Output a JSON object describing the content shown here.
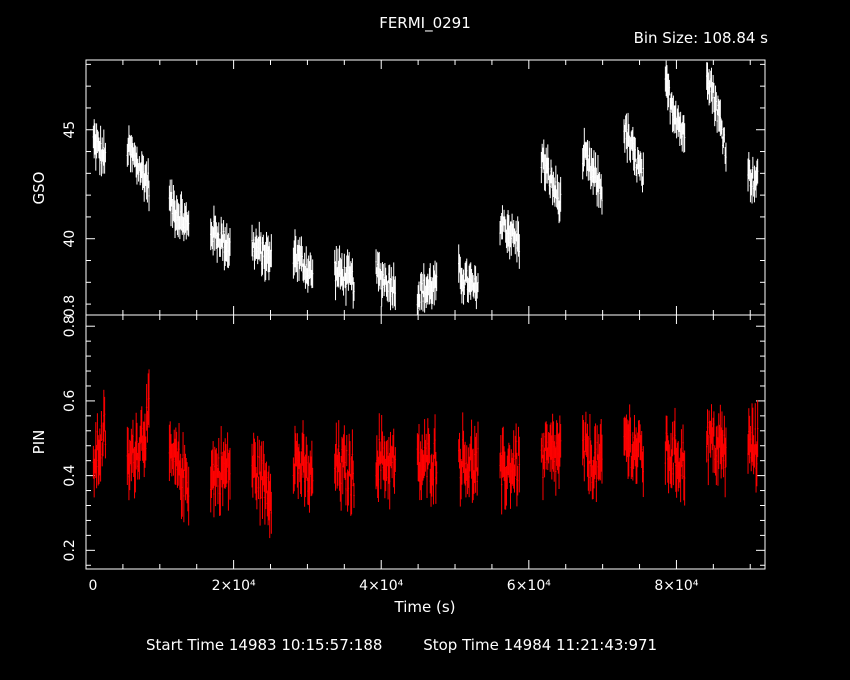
{
  "title": "FERMI_0291",
  "bin_size_text": "Bin Size: 108.84 s",
  "footer": {
    "start_time": "Start Time 14983 10:15:57:188",
    "stop_time": "Stop Time 14984 11:21:43:971"
  },
  "colors": {
    "background": "#000000",
    "axes": "#ffffff",
    "gso_series": "#ffffff",
    "pin_series": "#ff0000"
  },
  "chart_data": [
    {
      "type": "line",
      "panel": "top",
      "ylabel": "GSO",
      "xlabel": "",
      "xlim": [
        0,
        92000
      ],
      "ylim": [
        36.5,
        48.2
      ],
      "yticks_major": [
        40,
        45
      ],
      "ytick_labels": [
        "40",
        "45"
      ],
      "bottom_edge_label": "0.8",
      "series": [
        {
          "color": "#ffffff",
          "segments": [
            {
              "x": [
                1000,
                2800
              ],
              "y": [
                44.5,
                43.6
              ]
            },
            {
              "x": [
                5600,
                8700
              ],
              "y": [
                44.2,
                42.5
              ]
            },
            {
              "x": [
                11300,
                14100
              ],
              "y": [
                41.7,
                40.5
              ]
            },
            {
              "x": [
                16900,
                19700
              ],
              "y": [
                40.4,
                39.6
              ]
            },
            {
              "x": [
                22500,
                25300
              ],
              "y": [
                39.7,
                39.0
              ]
            },
            {
              "x": [
                28100,
                30900
              ],
              "y": [
                39.4,
                38.3
              ]
            },
            {
              "x": [
                33700,
                36500
              ],
              "y": [
                38.6,
                38.0
              ]
            },
            {
              "x": [
                39300,
                42100
              ],
              "y": [
                38.4,
                37.8
              ]
            },
            {
              "x": [
                44900,
                47700
              ],
              "y": [
                37.5,
                37.9
              ]
            },
            {
              "x": [
                50500,
                53300
              ],
              "y": [
                38.4,
                37.5
              ]
            },
            {
              "x": [
                56100,
                58900
              ],
              "y": [
                40.8,
                39.8
              ]
            },
            {
              "x": [
                61700,
                64500
              ],
              "y": [
                43.7,
                41.6
              ]
            },
            {
              "x": [
                67300,
                70100
              ],
              "y": [
                43.8,
                42.2
              ]
            },
            {
              "x": [
                72900,
                75700
              ],
              "y": [
                45.0,
                42.7
              ]
            },
            {
              "x": [
                78500,
                81300
              ],
              "y": [
                47.0,
                44.6
              ]
            },
            {
              "x": [
                84100,
                86900
              ],
              "y": [
                47.9,
                44.2
              ]
            },
            {
              "x": [
                89700,
                91200
              ],
              "y": [
                43.0,
                42.6
              ]
            }
          ]
        }
      ]
    },
    {
      "type": "line",
      "panel": "bottom",
      "ylabel": "PIN",
      "xlabel": "Time (s)",
      "xlim": [
        0,
        92000
      ],
      "ylim": [
        0.15,
        0.83
      ],
      "yticks_major": [
        0.2,
        0.4,
        0.6,
        0.8
      ],
      "ytick_labels": [
        "0.2",
        "0.4",
        "0.6",
        "0.8"
      ],
      "xticks_major": [
        20000,
        40000,
        60000,
        80000
      ],
      "xtick_labels": [
        "2×10⁴",
        "4×10⁴",
        "6×10⁴",
        "8×10⁴"
      ],
      "series": [
        {
          "color": "#ff0000",
          "segments": [
            {
              "x": [
                1000,
                2800
              ],
              "y": [
                0.43,
                0.52
              ]
            },
            {
              "x": [
                5600,
                8700
              ],
              "y": [
                0.42,
                0.55
              ]
            },
            {
              "x": [
                11300,
                14100
              ],
              "y": [
                0.45,
                0.38
              ]
            },
            {
              "x": [
                16900,
                19700
              ],
              "y": [
                0.4,
                0.42
              ]
            },
            {
              "x": [
                22500,
                25300
              ],
              "y": [
                0.42,
                0.36
              ]
            },
            {
              "x": [
                28100,
                30900
              ],
              "y": [
                0.45,
                0.38
              ]
            },
            {
              "x": [
                33700,
                36500
              ],
              "y": [
                0.43,
                0.4
              ]
            },
            {
              "x": [
                39300,
                42100
              ],
              "y": [
                0.45,
                0.43
              ]
            },
            {
              "x": [
                44900,
                47700
              ],
              "y": [
                0.42,
                0.45
              ]
            },
            {
              "x": [
                50500,
                53300
              ],
              "y": [
                0.45,
                0.42
              ]
            },
            {
              "x": [
                56100,
                58900
              ],
              "y": [
                0.4,
                0.44
              ]
            },
            {
              "x": [
                61700,
                64500
              ],
              "y": [
                0.44,
                0.46
              ]
            },
            {
              "x": [
                67300,
                70100
              ],
              "y": [
                0.46,
                0.42
              ]
            },
            {
              "x": [
                72900,
                75700
              ],
              "y": [
                0.5,
                0.45
              ]
            },
            {
              "x": [
                78500,
                81300
              ],
              "y": [
                0.46,
                0.44
              ]
            },
            {
              "x": [
                84100,
                86900
              ],
              "y": [
                0.5,
                0.46
              ]
            },
            {
              "x": [
                89700,
                91200
              ],
              "y": [
                0.48,
                0.47
              ]
            }
          ]
        }
      ]
    }
  ]
}
